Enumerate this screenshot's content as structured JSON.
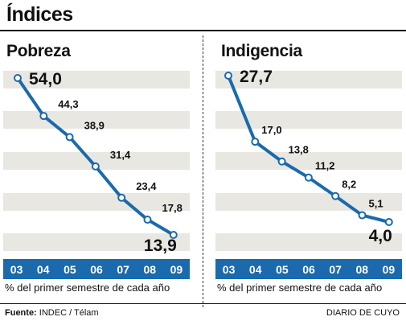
{
  "header": {
    "title": "Índices"
  },
  "footer": {
    "source_label": "Fuente:",
    "source_value": "INDEC / Télam",
    "credit": "DIARIO DE CUYO"
  },
  "chart_data": [
    {
      "type": "line",
      "title": "Pobreza",
      "xlabel": "% del primer semestre de cada año",
      "categories": [
        "03",
        "04",
        "05",
        "06",
        "07",
        "08",
        "09"
      ],
      "values": [
        54.0,
        44.3,
        38.9,
        31.4,
        23.4,
        17.8,
        13.9
      ],
      "labels": [
        "54,0",
        "44,3",
        "38,9",
        "31,4",
        "23,4",
        "17,8",
        "13,9"
      ],
      "ylim": [
        10,
        56
      ],
      "line_color": "#1a6aad",
      "band_color": "#e9e7e2"
    },
    {
      "type": "line",
      "title": "Indigencia",
      "xlabel": "% del primer semestre de cada año",
      "categories": [
        "03",
        "04",
        "05",
        "06",
        "07",
        "08",
        "09"
      ],
      "values": [
        27.7,
        17.0,
        13.8,
        11.2,
        8.2,
        5.1,
        4.0
      ],
      "labels": [
        "27,7",
        "17,0",
        "13,8",
        "11,2",
        "8,2",
        "5,1",
        "4,0"
      ],
      "ylim": [
        2,
        29
      ],
      "line_color": "#1a6aad",
      "band_color": "#e9e7e2"
    }
  ]
}
